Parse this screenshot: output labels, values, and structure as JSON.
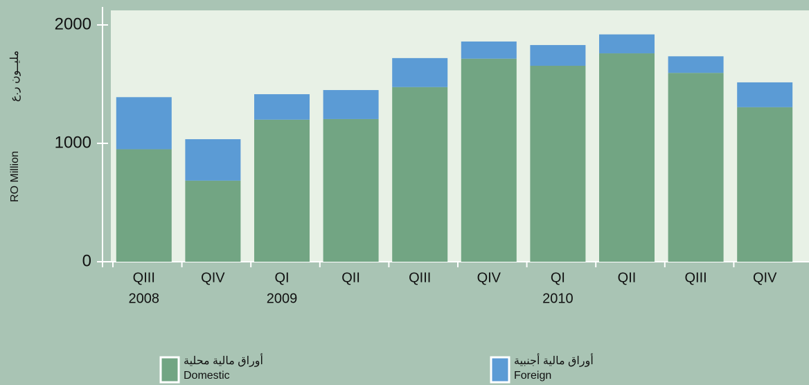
{
  "chart_data": {
    "type": "stacked_bar",
    "y_label": "RO Million",
    "y_label_ar": "مليــون ر.ع",
    "categories": [
      "QIII",
      "QIV",
      "QI",
      "QII",
      "QIII",
      "QIV",
      "QI",
      "QII",
      "QIII",
      "QIV"
    ],
    "category_years": [
      "2008",
      null,
      "2009",
      null,
      null,
      null,
      "2010",
      null,
      null,
      null
    ],
    "series": [
      {
        "name": "Domestic",
        "name_ar": "أوراق مالية محلية",
        "color": "#72a583",
        "values": [
          950,
          685,
          1200,
          1205,
          1475,
          1715,
          1655,
          1760,
          1595,
          1305
        ]
      },
      {
        "name": "Foreign",
        "name_ar": "أوراق مالية أجنبية",
        "color": "#5b9bd5",
        "values": [
          440,
          350,
          215,
          245,
          245,
          145,
          175,
          160,
          140,
          210
        ]
      }
    ],
    "ylim": [
      0,
      2000
    ],
    "yticks": [
      0,
      1000,
      2000
    ]
  }
}
